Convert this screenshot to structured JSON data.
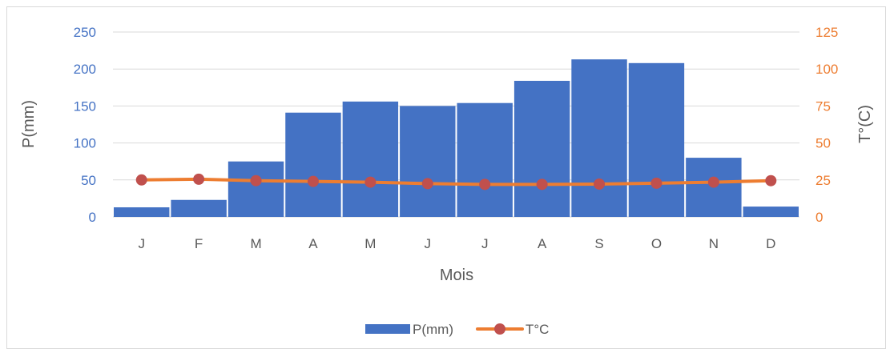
{
  "chart_data": {
    "type": "bar",
    "categories": [
      "J",
      "F",
      "M",
      "A",
      "M",
      "J",
      "J",
      "A",
      "S",
      "O",
      "N",
      "D"
    ],
    "series": [
      {
        "name": "P(mm)",
        "type": "bar",
        "axis": "left",
        "color": "#4472C4",
        "values": [
          13,
          23,
          75,
          141,
          156,
          150,
          154,
          184,
          213,
          208,
          80,
          14
        ]
      },
      {
        "name": "T°C",
        "type": "line",
        "axis": "right",
        "color": "#ED7D31",
        "marker_color": "#C0504D",
        "values": [
          25,
          25.5,
          24.5,
          24,
          23.5,
          22.5,
          22,
          22,
          22.2,
          22.8,
          23.5,
          24.5
        ]
      }
    ],
    "xlabel": "Mois",
    "ylabel": "P(mm)",
    "y2label": "T°(C)",
    "ylim": [
      0,
      250
    ],
    "y2lim": [
      0,
      125
    ],
    "yticks": [
      "0",
      "50",
      "100",
      "150",
      "200",
      "250"
    ],
    "y2ticks": [
      "0",
      "25",
      "50",
      "75",
      "100",
      "125"
    ],
    "left_tick_color": "#4472C4",
    "right_tick_color": "#ED7D31",
    "grid": true,
    "legend": "bottom"
  }
}
